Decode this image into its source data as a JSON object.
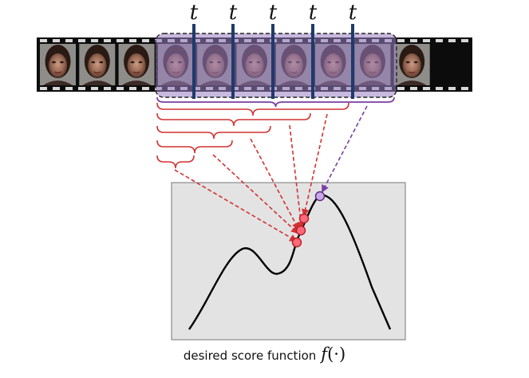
{
  "time_marker_label": "t",
  "time_marker_count": 5,
  "frames_total": 10,
  "selected_window_start": 3,
  "selected_window_length": 6,
  "caption": {
    "text": "desired score function",
    "function_symbol": "f",
    "function_args": "(·)"
  },
  "colors": {
    "film": "#0c0c0c",
    "film_hole": "#d8d8d8",
    "window_fill": "#9a7fc2",
    "window_border": "#222222",
    "time_marker": "#1f3a6b",
    "partial_bracket": "#d23232",
    "full_bracket": "#7a3fa0",
    "plot_background": "#e3e3e3",
    "plot_border": "#8a8a8a",
    "curve": "#000000",
    "partial_point": "#ff6b78",
    "full_point": "#c9a8e8"
  }
}
